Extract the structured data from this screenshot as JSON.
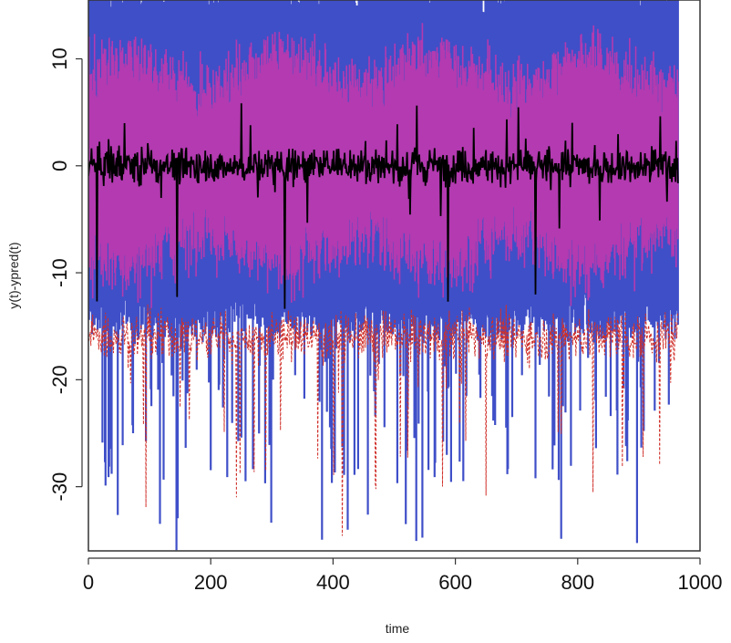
{
  "chart_data": {
    "type": "line",
    "title": "",
    "xlabel": "time",
    "ylabel": "y(t)-ypred(t)",
    "xlim": [
      0,
      1000
    ],
    "ylim": [
      -36,
      15.5
    ],
    "x_ticks": [
      "0",
      "200",
      "400",
      "600",
      "800",
      "1000"
    ],
    "y_ticks": [
      "10",
      "0",
      "-10",
      "-20",
      "-30"
    ],
    "x_tick_values": [
      0,
      200,
      400,
      600,
      800,
      1000
    ],
    "y_tick_values": [
      10,
      0,
      -10,
      -20,
      -30
    ],
    "grid": false,
    "n_points": 965,
    "series": [
      {
        "role": "outer-band",
        "color": "#3f4fc8",
        "upper_mean": 16,
        "lower_mean": -14,
        "spike_min": -36
      },
      {
        "role": "inner-band",
        "color": "#b33ab0",
        "upper_mean": 8.5,
        "lower_mean": -7.5
      },
      {
        "role": "dashed-lower",
        "color": "#d0302a",
        "style": "dashed",
        "mean": -16,
        "spike_min": -35
      },
      {
        "role": "residual",
        "color": "#000000",
        "mean": 0,
        "spread": 2,
        "spike_min": -14.5,
        "spike_max": 9
      }
    ]
  }
}
